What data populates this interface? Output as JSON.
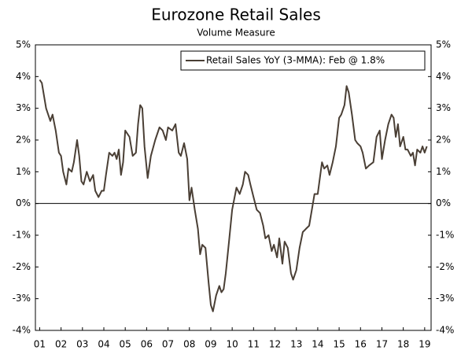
{
  "chart_data": {
    "type": "line",
    "title": "Eurozone Retail Sales",
    "subtitle": "Volume Measure",
    "x": [
      2001.0,
      2001.1,
      2001.3,
      2001.5,
      2001.6,
      2001.75,
      2001.9,
      2002.0,
      2002.1,
      2002.25,
      2002.35,
      2002.5,
      2002.6,
      2002.75,
      2002.85,
      2002.95,
      2003.05,
      2003.2,
      2003.35,
      2003.5,
      2003.6,
      2003.75,
      2003.9,
      2004.0,
      2004.1,
      2004.25,
      2004.4,
      2004.5,
      2004.6,
      2004.7,
      2004.8,
      2004.9,
      2005.0,
      2005.2,
      2005.35,
      2005.5,
      2005.6,
      2005.7,
      2005.8,
      2005.9,
      2006.05,
      2006.2,
      2006.4,
      2006.6,
      2006.75,
      2006.9,
      2007.0,
      2007.2,
      2007.35,
      2007.5,
      2007.6,
      2007.75,
      2007.9,
      2008.0,
      2008.1,
      2008.25,
      2008.4,
      2008.5,
      2008.6,
      2008.75,
      2008.9,
      2009.0,
      2009.1,
      2009.25,
      2009.4,
      2009.5,
      2009.6,
      2009.7,
      2009.85,
      2010.0,
      2010.2,
      2010.35,
      2010.5,
      2010.6,
      2010.75,
      2010.85,
      2011.0,
      2011.15,
      2011.3,
      2011.45,
      2011.55,
      2011.7,
      2011.85,
      2011.95,
      2012.1,
      2012.2,
      2012.35,
      2012.45,
      2012.6,
      2012.75,
      2012.85,
      2013.0,
      2013.15,
      2013.3,
      2013.45,
      2013.6,
      2013.75,
      2013.85,
      2014.0,
      2014.1,
      2014.2,
      2014.3,
      2014.45,
      2014.55,
      2014.7,
      2014.85,
      2015.0,
      2015.1,
      2015.25,
      2015.35,
      2015.45,
      2015.6,
      2015.75,
      2015.85,
      2016.0,
      2016.1,
      2016.25,
      2016.4,
      2016.6,
      2016.75,
      2016.9,
      2017.0,
      2017.15,
      2017.3,
      2017.45,
      2017.55,
      2017.65,
      2017.75,
      2017.85,
      2018.0,
      2018.1,
      2018.2,
      2018.35,
      2018.45,
      2018.55,
      2018.65,
      2018.8,
      2018.9,
      2019.0,
      2019.1
    ],
    "series": [
      {
        "name": "Retail Sales YoY (3-MMA): Feb @ 1.8%",
        "color": "#4a3f35",
        "values": [
          3.9,
          3.8,
          3.0,
          2.6,
          2.8,
          2.3,
          1.6,
          1.5,
          1.0,
          0.6,
          1.1,
          1.0,
          1.3,
          2.0,
          1.5,
          0.7,
          0.6,
          1.0,
          0.7,
          0.9,
          0.4,
          0.2,
          0.4,
          0.4,
          0.9,
          1.6,
          1.5,
          1.6,
          1.4,
          1.7,
          0.9,
          1.3,
          2.3,
          2.1,
          1.5,
          1.6,
          2.5,
          3.1,
          3.0,
          1.8,
          0.8,
          1.5,
          2.0,
          2.4,
          2.3,
          2.0,
          2.4,
          2.3,
          2.5,
          1.6,
          1.5,
          1.9,
          1.4,
          0.1,
          0.5,
          -0.2,
          -0.8,
          -1.6,
          -1.3,
          -1.4,
          -2.5,
          -3.2,
          -3.4,
          -2.9,
          -2.6,
          -2.8,
          -2.7,
          -2.2,
          -1.2,
          -0.2,
          0.5,
          0.3,
          0.6,
          1.0,
          0.9,
          0.6,
          0.2,
          -0.2,
          -0.3,
          -0.7,
          -1.1,
          -1.0,
          -1.5,
          -1.3,
          -1.7,
          -1.1,
          -1.9,
          -1.2,
          -1.4,
          -2.2,
          -2.4,
          -2.1,
          -1.4,
          -0.9,
          -0.8,
          -0.7,
          -0.1,
          0.3,
          0.3,
          0.8,
          1.3,
          1.1,
          1.2,
          0.9,
          1.3,
          1.8,
          2.7,
          2.8,
          3.1,
          3.7,
          3.5,
          2.8,
          2.0,
          1.9,
          1.8,
          1.6,
          1.1,
          1.2,
          1.3,
          2.1,
          2.3,
          1.4,
          2.0,
          2.5,
          2.8,
          2.7,
          2.1,
          2.5,
          1.8,
          2.1,
          1.7,
          1.7,
          1.5,
          1.6,
          1.2,
          1.7,
          1.6,
          1.8,
          1.6,
          1.8
        ]
      }
    ],
    "xlim": [
      2000.8,
      2019.3
    ],
    "xticks": [
      {
        "value": 2001,
        "label": "01"
      },
      {
        "value": 2002,
        "label": "02"
      },
      {
        "value": 2003,
        "label": "03"
      },
      {
        "value": 2004,
        "label": "04"
      },
      {
        "value": 2005,
        "label": "05"
      },
      {
        "value": 2006,
        "label": "06"
      },
      {
        "value": 2007,
        "label": "07"
      },
      {
        "value": 2008,
        "label": "08"
      },
      {
        "value": 2009,
        "label": "09"
      },
      {
        "value": 2010,
        "label": "10"
      },
      {
        "value": 2011,
        "label": "11"
      },
      {
        "value": 2012,
        "label": "12"
      },
      {
        "value": 2013,
        "label": "13"
      },
      {
        "value": 2014,
        "label": "14"
      },
      {
        "value": 2015,
        "label": "15"
      },
      {
        "value": 2016,
        "label": "16"
      },
      {
        "value": 2017,
        "label": "17"
      },
      {
        "value": 2018,
        "label": "18"
      },
      {
        "value": 2019,
        "label": "19"
      }
    ],
    "ylim": [
      -4,
      5
    ],
    "yticks": [
      {
        "value": -4,
        "label": "-4%"
      },
      {
        "value": -3,
        "label": "-3%"
      },
      {
        "value": -2,
        "label": "-2%"
      },
      {
        "value": -1,
        "label": "-1%"
      },
      {
        "value": 0,
        "label": "0%"
      },
      {
        "value": 1,
        "label": "1%"
      },
      {
        "value": 2,
        "label": "2%"
      },
      {
        "value": 3,
        "label": "3%"
      },
      {
        "value": 4,
        "label": "4%"
      },
      {
        "value": 5,
        "label": "5%"
      }
    ],
    "y2lim": [
      -4,
      5
    ],
    "y2ticks": [
      {
        "value": -4,
        "label": "-4%"
      },
      {
        "value": -3,
        "label": "-3%"
      },
      {
        "value": -2,
        "label": "-2%"
      },
      {
        "value": -1,
        "label": "-1%"
      },
      {
        "value": 0,
        "label": "0%"
      },
      {
        "value": 1,
        "label": "1%"
      },
      {
        "value": 2,
        "label": "2%"
      },
      {
        "value": 3,
        "label": "3%"
      },
      {
        "value": 4,
        "label": "4%"
      },
      {
        "value": 5,
        "label": "5%"
      }
    ],
    "zero_line": true,
    "legend": "upper right"
  }
}
